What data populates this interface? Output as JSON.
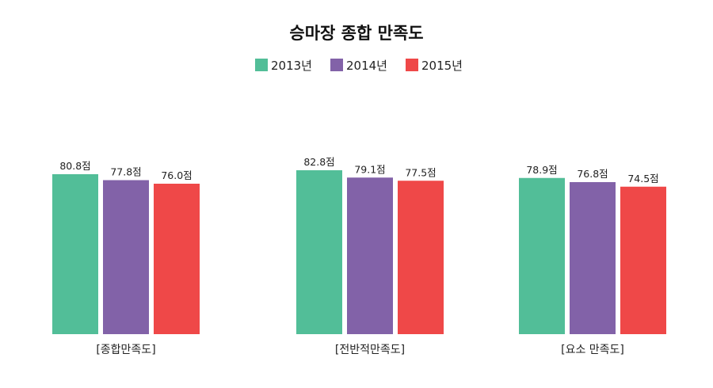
{
  "chart_data": {
    "type": "bar",
    "title": "승마장 종합 만족도",
    "unit_suffix": "점",
    "categories": [
      "[종합만족도]",
      "[전반적만족도]",
      "[요소 만족도]"
    ],
    "series": [
      {
        "name": "2013년",
        "color": "#52be98",
        "values": [
          80.8,
          82.8,
          78.9
        ]
      },
      {
        "name": "2014년",
        "color": "#8262a8",
        "values": [
          77.8,
          79.1,
          76.8
        ]
      },
      {
        "name": "2015년",
        "color": "#ef4848",
        "values": [
          76.0,
          77.5,
          74.5
        ]
      }
    ],
    "legend_position": "top-center",
    "grid": false,
    "value_labels": [
      "80.8점",
      "77.8점",
      "76.0점",
      "82.8점",
      "79.1점",
      "77.5점",
      "78.9점",
      "76.8점",
      "74.5점"
    ]
  }
}
